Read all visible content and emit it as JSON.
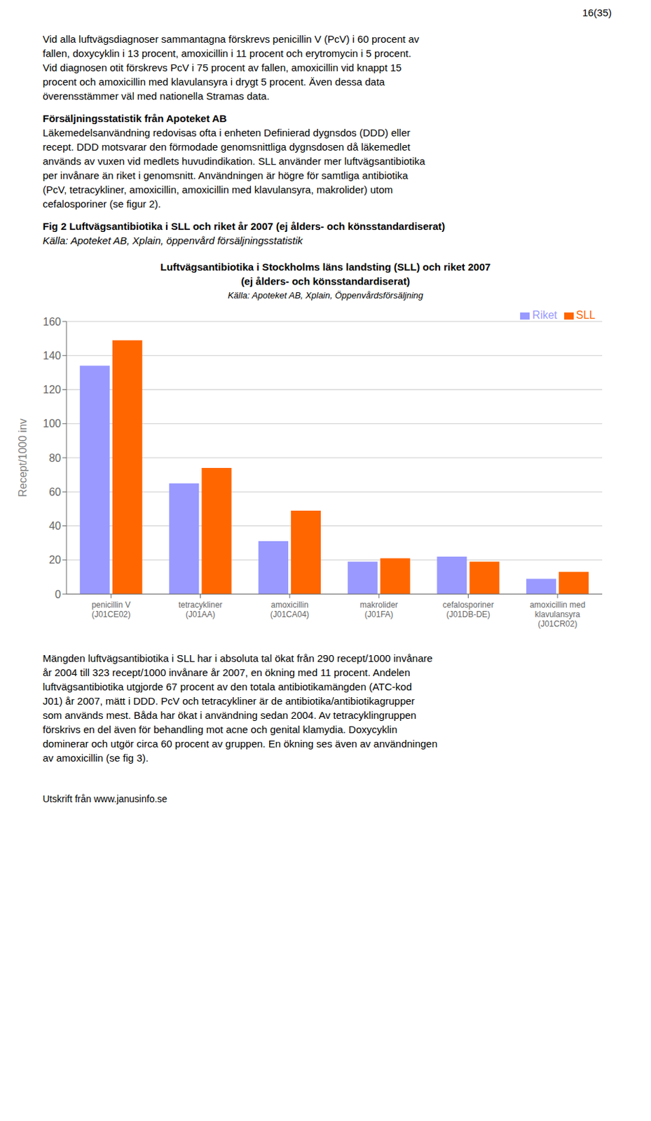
{
  "page_number": "16(35)",
  "para1": "Vid alla luftvägsdiagnoser sammantagna förskrevs penicillin V (PcV) i 60 procent av\nfallen, doxycyklin i 13 procent, amoxicillin i 11 procent och erytromycin i 5 procent.\nVid diagnosen otit förskrevs PcV i 75 procent av fallen, amoxicillin vid knappt 15\nprocent och amoxicillin med klavulansyra i drygt 5 procent. Även dessa data\növerensstämmer väl med nationella Stramas data.",
  "heading": "Försäljningsstatistik från Apoteket AB",
  "para2": "Läkemedelsanvändning redovisas ofta i enheten Definierad dygnsdos (DDD) eller\nrecept. DDD motsvarar den förmodade genomsnittliga dygnsdosen då läkemedlet\nanvänds av vuxen vid medlets huvudindikation. SLL använder mer luftvägsantibiotika\nper invånare än riket i genomsnitt. Användningen är högre för samtliga antibiotika\n(PcV, tetracykliner, amoxicillin, amoxicillin med klavulansyra, makrolider) utom\ncefalosporiner (se figur 2).",
  "fig_caption_bold": "Fig 2 Luftvägsantibiotika i SLL och riket år 2007 (ej ålders- och könsstandardiserat)",
  "fig_caption_italic": "Källa: Apoteket AB, Xplain, öppenvård försäljningsstatistik",
  "chart_data": {
    "type": "bar",
    "title": "Luftvägsantibiotika i Stockholms läns landsting (SLL) och riket 2007",
    "subtitle": "(ej ålders- och könsstandardiserat)",
    "source": "Källa: Apoteket AB, Xplain, Öppenvårdsförsäljning",
    "ylabel": "Recept/1000 inv",
    "categories": [
      "penicillin V\n(J01CE02)",
      "tetracykliner\n(J01AA)",
      "amoxicillin\n(J01CA04)",
      "makrolider\n(J01FA)",
      "cefalosporiner\n(J01DB-DE)",
      "amoxicillin med\nklavulansyra\n(J01CR02)"
    ],
    "series": [
      {
        "name": "Riket",
        "color": "#9999ff",
        "values": [
          134,
          65,
          31,
          19,
          22,
          9
        ]
      },
      {
        "name": "SLL",
        "color": "#ff6600",
        "values": [
          149,
          74,
          49,
          21,
          19,
          13
        ]
      }
    ],
    "ylim": [
      0,
      160
    ],
    "yticks": [
      0,
      20,
      40,
      60,
      80,
      100,
      120,
      140,
      160
    ],
    "grid": true,
    "legend": "upper right"
  },
  "footer_text": "Mängden luftvägsantibiotika i SLL har i absoluta tal ökat från 290 recept/1000 invånare\når 2004 till 323 recept/1000 invånare år 2007, en ökning med 11 procent. Andelen\nluftvägsantibiotika utgjorde 67 procent av den totala antibiotikamängden (ATC-kod\nJ01) år 2007, mätt i DDD. PcV och tetracykliner är de antibiotika/antibiotikagrupper\nsom används mest. Båda har ökat i användning sedan 2004. Av tetracyklingruppen\nförskrivs en del även för behandling mot acne och genital klamydia. Doxycyklin\ndominerar och utgör circa 60 procent av gruppen. En ökning ses även av användningen\nav amoxicillin (se fig 3).",
  "footer_bottom": "Utskrift från www.janusinfo.se"
}
